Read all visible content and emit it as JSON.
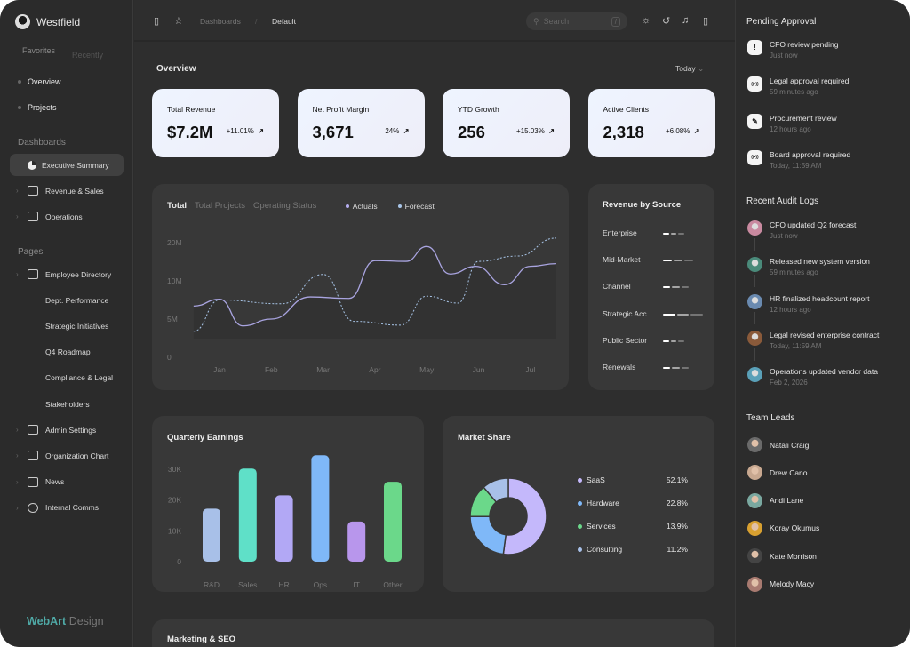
{
  "sidebar": {
    "brand": "Westfield",
    "tabs": [
      "Favorites",
      "Recently"
    ],
    "favorites": [
      "Overview",
      "Projects"
    ],
    "dashboards_title": "Dashboards",
    "dashboards": [
      {
        "label": "Executive Summary",
        "active": true
      },
      {
        "label": "Revenue & Sales"
      },
      {
        "label": "Operations"
      }
    ],
    "pages_title": "Pages",
    "pages": [
      {
        "label": "Employee Directory",
        "icon": "contact-icon",
        "chevron": true
      },
      {
        "label": "Dept. Performance"
      },
      {
        "label": "Strategic Initiatives"
      },
      {
        "label": "Q4 Roadmap"
      },
      {
        "label": "Compliance & Legal"
      },
      {
        "label": "Stakeholders"
      },
      {
        "label": "Admin Settings",
        "icon": "id-card-icon",
        "chevron": true
      },
      {
        "label": "Organization Chart",
        "icon": "users-icon",
        "chevron": true
      },
      {
        "label": "News",
        "icon": "news-icon",
        "chevron": true
      },
      {
        "label": "Internal Comms",
        "icon": "chat-icon",
        "chevron": true
      }
    ],
    "logo": {
      "a": "WebArt",
      "b": "Design"
    }
  },
  "header": {
    "breadcrumb": [
      "Dashboards",
      "Default"
    ],
    "search_placeholder": "Search",
    "search_shortcut": "/"
  },
  "overview": {
    "title": "Overview",
    "period": "Today",
    "kpis": [
      {
        "label": "Total Revenue",
        "value": "$7.2M",
        "change": "+11.01%"
      },
      {
        "label": "Net Profit Margin",
        "value": "3,671",
        "change": "24%"
      },
      {
        "label": "YTD Growth",
        "value": "256",
        "change": "+15.03%"
      },
      {
        "label": "Active Clients",
        "value": "2,318",
        "change": "+6.08%"
      }
    ]
  },
  "chart_data": [
    {
      "type": "line",
      "tabs": [
        "Total",
        "Total Projects",
        "Operating Status"
      ],
      "active_tab": "Total",
      "categories": [
        "Jan",
        "Feb",
        "Mar",
        "Apr",
        "May",
        "Jun",
        "Jul"
      ],
      "y_ticks": [
        "0",
        "5M",
        "10M",
        "20M"
      ],
      "y_tick_values": [
        0,
        5,
        10,
        20
      ],
      "grid": false,
      "series": [
        {
          "name": "Actuals",
          "color": "#a9a4e0",
          "style": "solid",
          "x": [
            -0.5,
            0,
            0.45,
            1,
            1.75,
            2.5,
            3,
            3.6,
            4,
            4.45,
            4.95,
            5.5,
            6,
            6.5
          ],
          "y": [
            6.7,
            7.6,
            4.1,
            5,
            7.9,
            7.7,
            15.3,
            15.1,
            19,
            11.8,
            13.8,
            9.5,
            13.8,
            14.5
          ]
        },
        {
          "name": "Forecast",
          "color": "#a8c5e8",
          "style": "dashed",
          "x": [
            -0.5,
            0,
            1.2,
            2,
            2.6,
            3.5,
            4,
            4.6,
            5,
            5.75,
            6.5
          ],
          "y": [
            3.4,
            7.5,
            7,
            11.7,
            4.7,
            4.2,
            8,
            7.1,
            15.1,
            16.5,
            21.2
          ]
        }
      ]
    },
    {
      "type": "bar",
      "title": "Quarterly Earnings",
      "categories": [
        "R&D",
        "Sales",
        "HR",
        "Ops",
        "IT",
        "Other"
      ],
      "values": [
        17.2,
        30.2,
        21.5,
        34.5,
        13,
        25.9
      ],
      "unit": "K",
      "y_ticks": [
        "0",
        "10K",
        "20K",
        "30K"
      ],
      "ylim": [
        0,
        35
      ],
      "colors": [
        "#a8c0e8",
        "#5fe0c8",
        "#b2a8f5",
        "#7fb8f8",
        "#b896ec",
        "#6bd88a"
      ]
    },
    {
      "type": "pie",
      "title": "Market Share",
      "donut": true,
      "slices": [
        {
          "label": "SaaS",
          "value": 52.1,
          "display": "52.1%",
          "color": "#c4b8fb"
        },
        {
          "label": "Hardware",
          "value": 22.8,
          "display": "22.8%",
          "color": "#7fb8f8"
        },
        {
          "label": "Services",
          "value": 13.9,
          "display": "13.9%",
          "color": "#6bd88a"
        },
        {
          "label": "Consulting",
          "value": 11.2,
          "display": "11.2%",
          "color": "#a8c0e8"
        }
      ]
    }
  ],
  "revenue_by_source": {
    "title": "Revenue by Source",
    "items": [
      {
        "label": "Enterprise",
        "level": 1
      },
      {
        "label": "Mid-Market",
        "level": 2
      },
      {
        "label": "Channel",
        "level": 1.5
      },
      {
        "label": "Strategic Acc.",
        "level": 3
      },
      {
        "label": "Public Sector",
        "level": 1
      },
      {
        "label": "Renewals",
        "level": 1.5
      }
    ]
  },
  "marketing": {
    "title": "Marketing & SEO"
  },
  "right": {
    "pending_title": "Pending Approval",
    "pending": [
      {
        "title": "CFO review pending",
        "time": "Just now",
        "icon": "alert-icon"
      },
      {
        "title": "Legal approval required",
        "time": "59 minutes ago",
        "icon": "broadcast-icon"
      },
      {
        "title": "Procurement review",
        "time": "12 hours ago",
        "icon": "edit-icon"
      },
      {
        "title": "Board approval required",
        "time": "Today, 11:59 AM",
        "icon": "broadcast-icon"
      }
    ],
    "audit_title": "Recent Audit Logs",
    "audit": [
      {
        "title": "CFO updated Q2 forecast",
        "time": "Just now",
        "color": "#c98aa0"
      },
      {
        "title": "Released new system version",
        "time": "59 minutes ago",
        "color": "#4a8a7a"
      },
      {
        "title": "HR finalized headcount report",
        "time": "12 hours ago",
        "color": "#6a8ab0"
      },
      {
        "title": "Legal revised enterprise contract",
        "time": "Today, 11:59 AM",
        "color": "#8a5a3a"
      },
      {
        "title": "Operations updated vendor data",
        "time": "Feb 2, 2026",
        "color": "#5aa0b8"
      }
    ],
    "leads_title": "Team Leads",
    "leads": [
      {
        "name": "Natali Craig",
        "color": "#6a6a6a"
      },
      {
        "name": "Drew Cano",
        "color": "#c8a890"
      },
      {
        "name": "Andi Lane",
        "color": "#7aa8a0"
      },
      {
        "name": "Koray Okumus",
        "color": "#d8a030"
      },
      {
        "name": "Kate Morrison",
        "color": "#444"
      },
      {
        "name": "Melody Macy",
        "color": "#a87a70"
      }
    ]
  }
}
